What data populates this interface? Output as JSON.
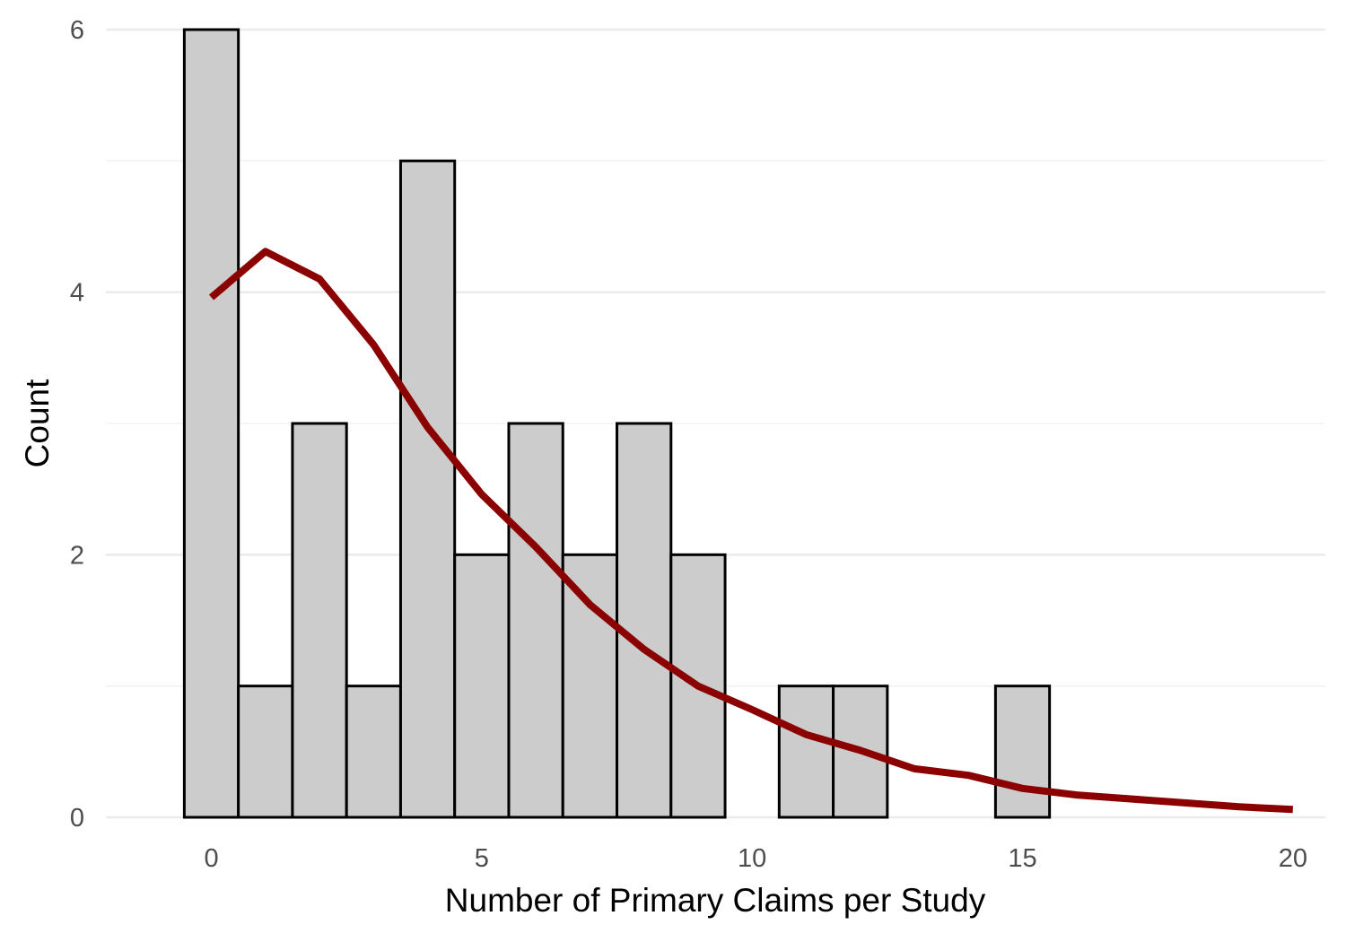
{
  "chart_data": {
    "type": "bar",
    "xlabel": "Number of Primary Claims per Study",
    "ylabel": "Count",
    "xlim": [
      -1.95,
      20.6
    ],
    "ylim": [
      0,
      6
    ],
    "x_ticks": [
      0,
      5,
      10,
      15,
      20
    ],
    "y_ticks": [
      0,
      2,
      4,
      6
    ],
    "grid": true,
    "bin_width": 1,
    "bars": [
      {
        "x": 0,
        "count": 6
      },
      {
        "x": 1,
        "count": 1
      },
      {
        "x": 2,
        "count": 3
      },
      {
        "x": 3,
        "count": 1
      },
      {
        "x": 4,
        "count": 5
      },
      {
        "x": 5,
        "count": 2
      },
      {
        "x": 6,
        "count": 3
      },
      {
        "x": 7,
        "count": 2
      },
      {
        "x": 8,
        "count": 3
      },
      {
        "x": 9,
        "count": 2
      },
      {
        "x": 10,
        "count": 0
      },
      {
        "x": 11,
        "count": 1
      },
      {
        "x": 12,
        "count": 1
      },
      {
        "x": 13,
        "count": 0
      },
      {
        "x": 14,
        "count": 0
      },
      {
        "x": 15,
        "count": 1
      },
      {
        "x": 16,
        "count": 0
      },
      {
        "x": 17,
        "count": 0
      },
      {
        "x": 18,
        "count": 0
      },
      {
        "x": 19,
        "count": 0
      }
    ],
    "density_curve": {
      "color": "#8b0000",
      "points": [
        [
          0,
          3.96
        ],
        [
          1,
          4.31
        ],
        [
          2,
          4.1
        ],
        [
          3,
          3.6
        ],
        [
          4,
          2.97
        ],
        [
          5,
          2.46
        ],
        [
          6,
          2.06
        ],
        [
          7,
          1.62
        ],
        [
          8,
          1.28
        ],
        [
          9,
          1.0
        ],
        [
          10,
          0.82
        ],
        [
          11,
          0.63
        ],
        [
          12,
          0.51
        ],
        [
          13,
          0.37
        ],
        [
          14,
          0.32
        ],
        [
          15,
          0.22
        ],
        [
          16,
          0.17
        ],
        [
          17,
          0.14
        ],
        [
          18,
          0.11
        ],
        [
          19,
          0.08
        ],
        [
          20,
          0.06
        ]
      ]
    },
    "colors": {
      "bar_fill": "#cccccc",
      "bar_outline": "#000000",
      "grid_major": "#ebebeb",
      "grid_minor": "#f2f2f2"
    }
  }
}
